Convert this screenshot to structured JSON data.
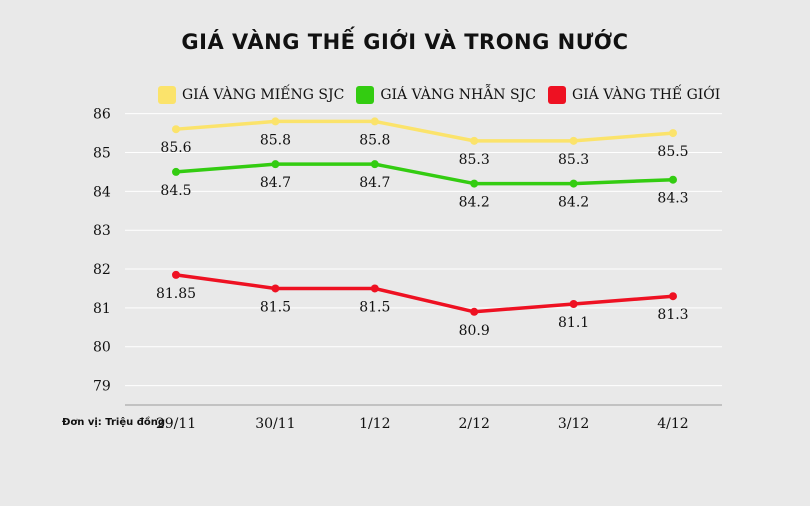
{
  "chart_data": {
    "type": "line",
    "title": "GIÁ VÀNG THẾ GIỚI VÀ TRONG NƯỚC",
    "unit_note": "Đơn vị: Triệu đồng",
    "categories": [
      "29/11",
      "30/11",
      "1/12",
      "2/12",
      "3/12",
      "4/12"
    ],
    "y_ticks": [
      "86",
      "85",
      "84",
      "83",
      "82",
      "81",
      "80",
      "79"
    ],
    "ylim": [
      78.5,
      86.3
    ],
    "grid": true,
    "legend_position": "top",
    "series": [
      {
        "name": "GIÁ VÀNG MIẾNG SJC",
        "color": "#fbe36b",
        "values": [
          85.6,
          85.8,
          85.8,
          85.3,
          85.3,
          85.5
        ],
        "labels": [
          "85.6",
          "85.8",
          "85.8",
          "85.3",
          "85.3",
          "85.5"
        ]
      },
      {
        "name": "GIÁ VÀNG NHẪN SJC",
        "color": "#33cc11",
        "values": [
          84.5,
          84.7,
          84.7,
          84.2,
          84.2,
          84.3
        ],
        "labels": [
          "84.5",
          "84.7",
          "84.7",
          "84.2",
          "84.2",
          "84.3"
        ]
      },
      {
        "name": "GIÁ VÀNG THẾ GIỚI",
        "color": "#ee1122",
        "values": [
          81.85,
          81.5,
          81.5,
          80.9,
          81.1,
          81.3
        ],
        "labels": [
          "81.85",
          "81.5",
          "81.5",
          "80.9",
          "81.1",
          "81.3"
        ]
      }
    ]
  }
}
